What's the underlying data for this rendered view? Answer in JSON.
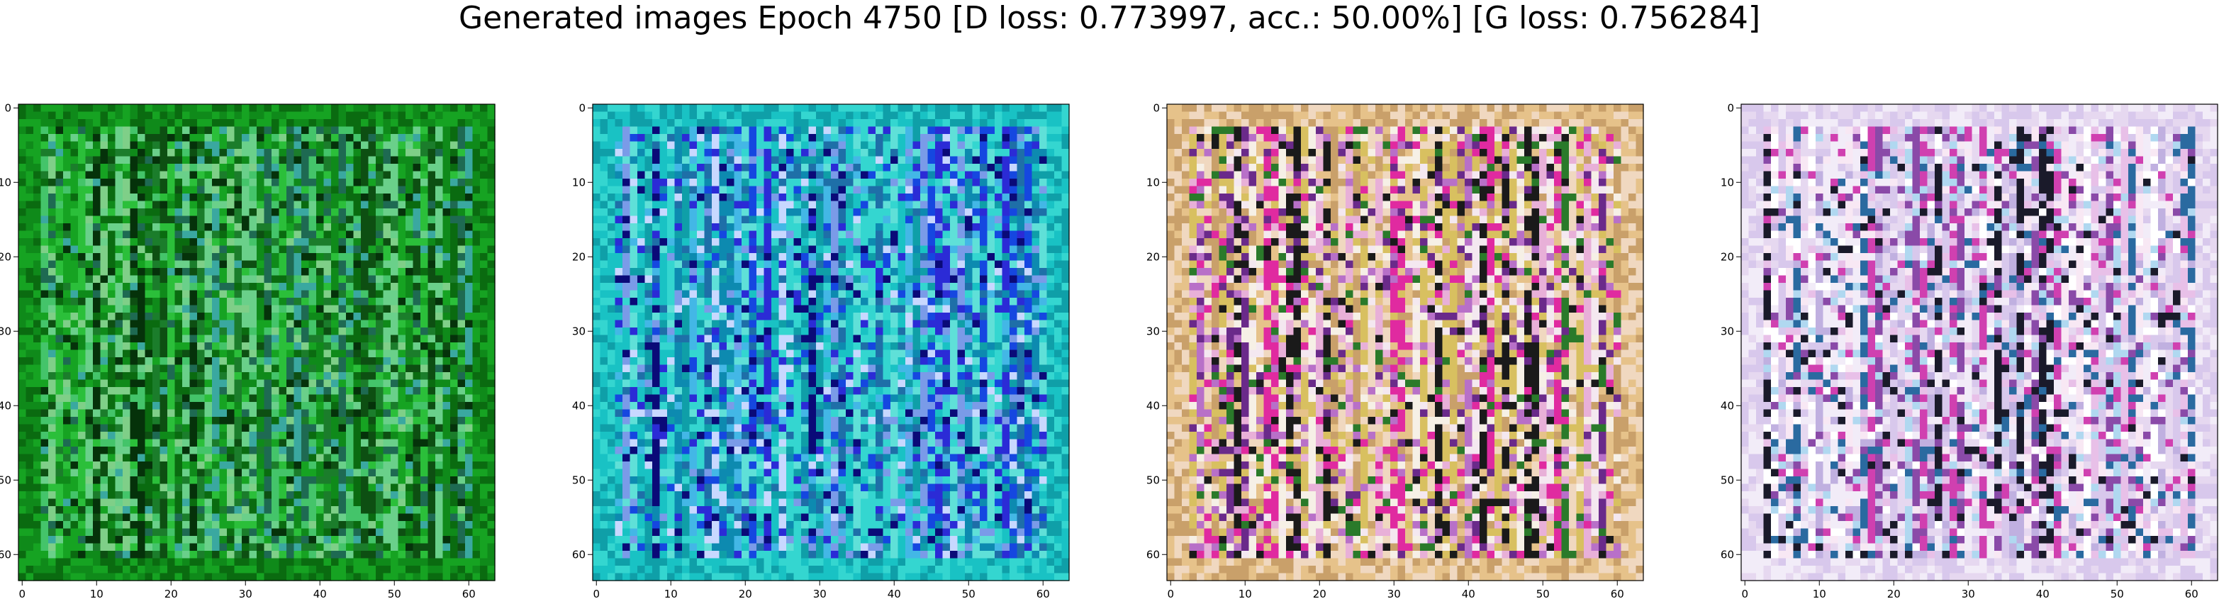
{
  "title": "Generated images Epoch 4750 [D loss: 0.773997, acc.: 50.00%] [G loss: 0.756284]",
  "panels": [
    {
      "palette": [
        "#0a6b10",
        "#0f8a1a",
        "#16a322",
        "#2bbf3a",
        "#44c46a",
        "#6ad08a",
        "#3aa8a0",
        "#1e6a52",
        "#05320a",
        "#7fcf88",
        "#1b7d2b",
        "#0d4f12"
      ]
    },
    {
      "palette": [
        "#0f9fa8",
        "#19c2c4",
        "#34d6d0",
        "#5fe0d8",
        "#1547e0",
        "#2b2bd6",
        "#0a0a78",
        "#7a9be8",
        "#c8d8ff",
        "#1e6fa8",
        "#0d8ab0",
        "#43b7e6"
      ]
    },
    {
      "palette": [
        "#c9a06a",
        "#e6c28a",
        "#f0d8c0",
        "#e8b0d8",
        "#f4e8f0",
        "#b870c8",
        "#e02aa0",
        "#2a7a2a",
        "#1a1a1a",
        "#6a2a8a",
        "#d8c060",
        "#f6f0e6"
      ]
    },
    {
      "palette": [
        "#e6d8f0",
        "#f2ecf8",
        "#d8c8ec",
        "#c0b0e0",
        "#ffffff",
        "#e8c0e8",
        "#d040b0",
        "#1a1a2a",
        "#2a6aa0",
        "#b0d8f0",
        "#8a4aa8",
        "#f8e8f4"
      ]
    }
  ],
  "axis_ticks": [
    "0",
    "10",
    "20",
    "30",
    "40",
    "50",
    "60"
  ]
}
